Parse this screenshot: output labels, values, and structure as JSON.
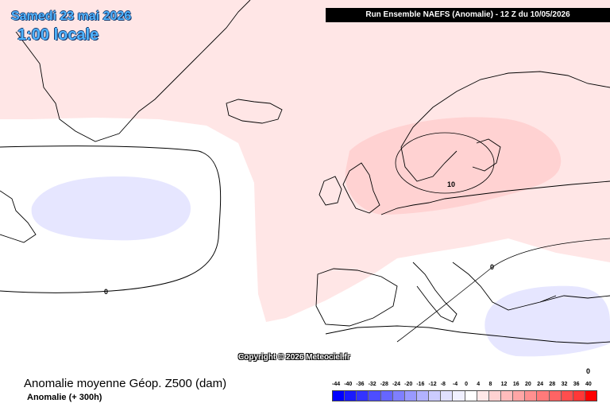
{
  "header": {
    "date": "Samedi 23 mai 2026",
    "time": "1:00 locale",
    "run": "Run Ensemble NAEFS  (Anomalie)  -  12 Z du 10/05/2026"
  },
  "footer": {
    "title": "Anomalie moyenne Géop. Z500 (dam)",
    "subtitle": "Anomalie (+ 300h)",
    "copyright": "Copyright © 2026 Meteociel.fr"
  },
  "legend": {
    "labels": [
      "-44",
      "-40",
      "-36",
      "-32",
      "-28",
      "-24",
      "-20",
      "-16",
      "-12",
      "-8",
      "-4",
      "0",
      "4",
      "8",
      "12",
      "16",
      "20",
      "24",
      "28",
      "32",
      "36",
      "40"
    ],
    "colors": [
      "#0000ff",
      "#1a1aff",
      "#3333ff",
      "#4d4dff",
      "#6666ff",
      "#7f7fff",
      "#9999ff",
      "#b2b2ff",
      "#ccccff",
      "#e0e0ff",
      "#f0f0ff",
      "#ffffff",
      "#ffe8e8",
      "#ffd2d2",
      "#ffbcbc",
      "#ffa6a6",
      "#ff9090",
      "#ff7a7a",
      "#ff6464",
      "#ff4e4e",
      "#ff3838",
      "#ff0000"
    ]
  },
  "contour_labels": {
    "zero_atlantic": "0",
    "zero_balkans": "0",
    "zero_southeast": "0",
    "ten_baltic": "10"
  },
  "colors": {
    "positive_light": "#ffe6e6",
    "positive_mid": "#ffd2d2",
    "negative_light": "#e6e6ff"
  }
}
